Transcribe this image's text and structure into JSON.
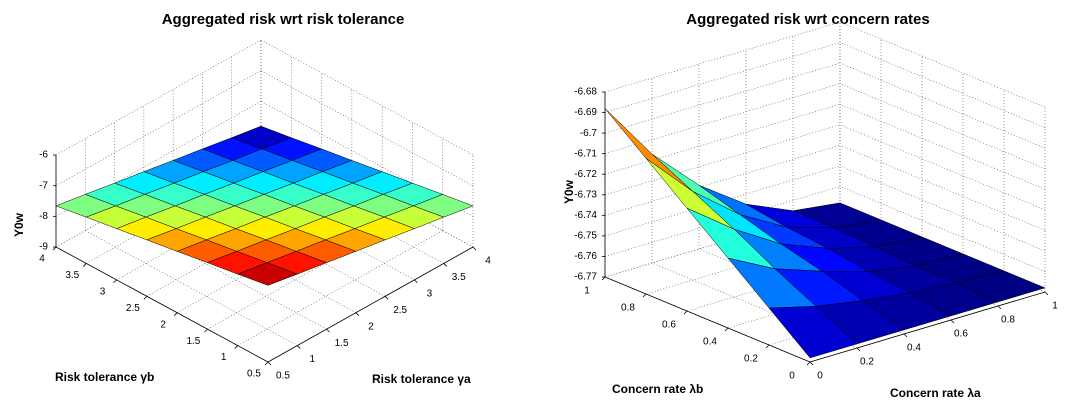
{
  "chart_data": [
    {
      "type": "surface",
      "title": "Aggregated risk wrt risk tolerance",
      "xlabel": "Risk tolerance γa",
      "ylabel": "Risk tolerance γb",
      "zlabel": "Y0w",
      "colormap": "jet",
      "grid": true,
      "x": [
        0.5,
        1,
        1.5,
        2,
        2.5,
        3,
        3.5,
        4
      ],
      "y": [
        0.5,
        1,
        1.5,
        2,
        2.5,
        3,
        3.5,
        4
      ],
      "z": [
        [
          -6.5,
          -6.67,
          -6.83,
          -7.0,
          -7.16,
          -7.33,
          -7.49,
          -7.66
        ],
        [
          -6.67,
          -6.83,
          -7.0,
          -7.16,
          -7.33,
          -7.49,
          -7.66,
          -7.82
        ],
        [
          -6.83,
          -7.0,
          -7.16,
          -7.33,
          -7.49,
          -7.66,
          -7.82,
          -7.99
        ],
        [
          -7.0,
          -7.16,
          -7.33,
          -7.49,
          -7.66,
          -7.82,
          -7.99,
          -8.15
        ],
        [
          -7.16,
          -7.33,
          -7.49,
          -7.66,
          -7.82,
          -7.99,
          -8.15,
          -8.32
        ],
        [
          -7.33,
          -7.49,
          -7.66,
          -7.82,
          -7.99,
          -8.15,
          -8.32,
          -8.48
        ],
        [
          -7.49,
          -7.66,
          -7.82,
          -7.99,
          -8.15,
          -8.32,
          -8.48,
          -8.65
        ],
        [
          -7.66,
          -7.82,
          -7.99,
          -8.15,
          -8.32,
          -8.48,
          -8.65,
          -8.81
        ]
      ],
      "xlim": [
        0.5,
        4
      ],
      "ylim": [
        0.5,
        4
      ],
      "zlim": [
        -9,
        -6
      ],
      "xticks": [
        0.5,
        1,
        1.5,
        2,
        2.5,
        3,
        3.5,
        4
      ],
      "yticks": [
        0.5,
        1,
        1.5,
        2,
        2.5,
        3,
        3.5,
        4
      ],
      "zticks": [
        -9,
        -8,
        -7,
        -6
      ]
    },
    {
      "type": "surface",
      "title": "Aggregated risk wrt concern rates",
      "xlabel": "Concern rate λa",
      "ylabel": "Concern rate λb",
      "zlabel": "Y0w",
      "colormap": "jet",
      "grid": true,
      "x": [
        0,
        0.2,
        0.4,
        0.6,
        0.8,
        1
      ],
      "y": [
        0,
        0.2,
        0.4,
        0.6,
        0.8,
        1
      ],
      "z": [
        [
          -6.768,
          -6.752,
          -6.736,
          -6.72,
          -6.704,
          -6.688
        ],
        [
          -6.768,
          -6.758,
          -6.748,
          -6.737,
          -6.727,
          -6.717
        ],
        [
          -6.768,
          -6.762,
          -6.756,
          -6.751,
          -6.745,
          -6.739
        ],
        [
          -6.768,
          -6.765,
          -6.763,
          -6.76,
          -6.758,
          -6.755
        ],
        [
          -6.768,
          -6.767,
          -6.767,
          -6.766,
          -6.765,
          -6.765
        ],
        [
          -6.768,
          -6.768,
          -6.768,
          -6.768,
          -6.768,
          -6.768
        ]
      ],
      "xlim": [
        0,
        1
      ],
      "ylim": [
        0,
        1
      ],
      "zlim": [
        -6.77,
        -6.68
      ],
      "xticks": [
        0,
        0.2,
        0.4,
        0.6,
        0.8,
        1
      ],
      "yticks": [
        0,
        0.2,
        0.4,
        0.6,
        0.8,
        1
      ],
      "zticks": [
        -6.77,
        -6.76,
        -6.75,
        -6.74,
        -6.73,
        -6.72,
        -6.71,
        -6.7,
        -6.69,
        -6.68
      ]
    }
  ]
}
